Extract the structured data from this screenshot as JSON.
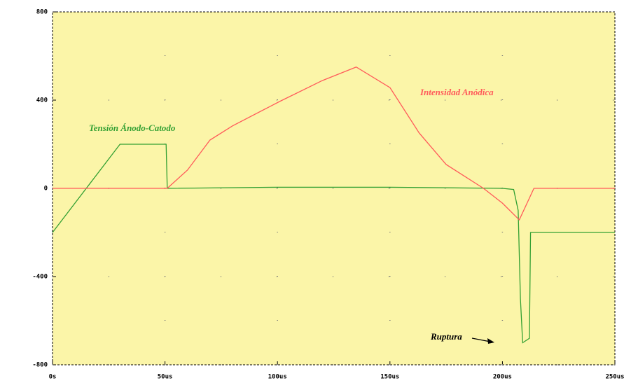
{
  "chart_data": {
    "type": "line",
    "xlim": [
      0,
      250
    ],
    "ylim": [
      -800,
      800
    ],
    "xticks": [
      {
        "value": 0,
        "label": "0s"
      },
      {
        "value": 50,
        "label": "50us"
      },
      {
        "value": 100,
        "label": "100us"
      },
      {
        "value": 150,
        "label": "150us"
      },
      {
        "value": 200,
        "label": "200us"
      },
      {
        "value": 250,
        "label": "250us"
      }
    ],
    "yticks": [
      800,
      400,
      0,
      -400,
      -800
    ],
    "grid": true,
    "annotation": "Ruptura",
    "series": [
      {
        "name": "Tensión Ánodo-Catodo",
        "color": "#33a033",
        "x": [
          0,
          30,
          50.5,
          51,
          100,
          150,
          170,
          200,
          205,
          207,
          208,
          209,
          212,
          212.5,
          250
        ],
        "values": [
          -200,
          200,
          200,
          0,
          5,
          5,
          3,
          0,
          -5,
          -100,
          -500,
          -700,
          -680,
          -200,
          -200
        ]
      },
      {
        "name": "Intensidad Anódica",
        "color": "#ff5a5a",
        "x": [
          0,
          51,
          60,
          70,
          80,
          101,
          120,
          135,
          150,
          163,
          175,
          191.6,
          200,
          207.5,
          214,
          250
        ],
        "values": [
          0,
          0,
          83,
          219,
          283,
          394,
          489,
          550,
          457,
          251,
          108,
          0,
          -67,
          -143,
          0,
          0
        ]
      }
    ]
  }
}
